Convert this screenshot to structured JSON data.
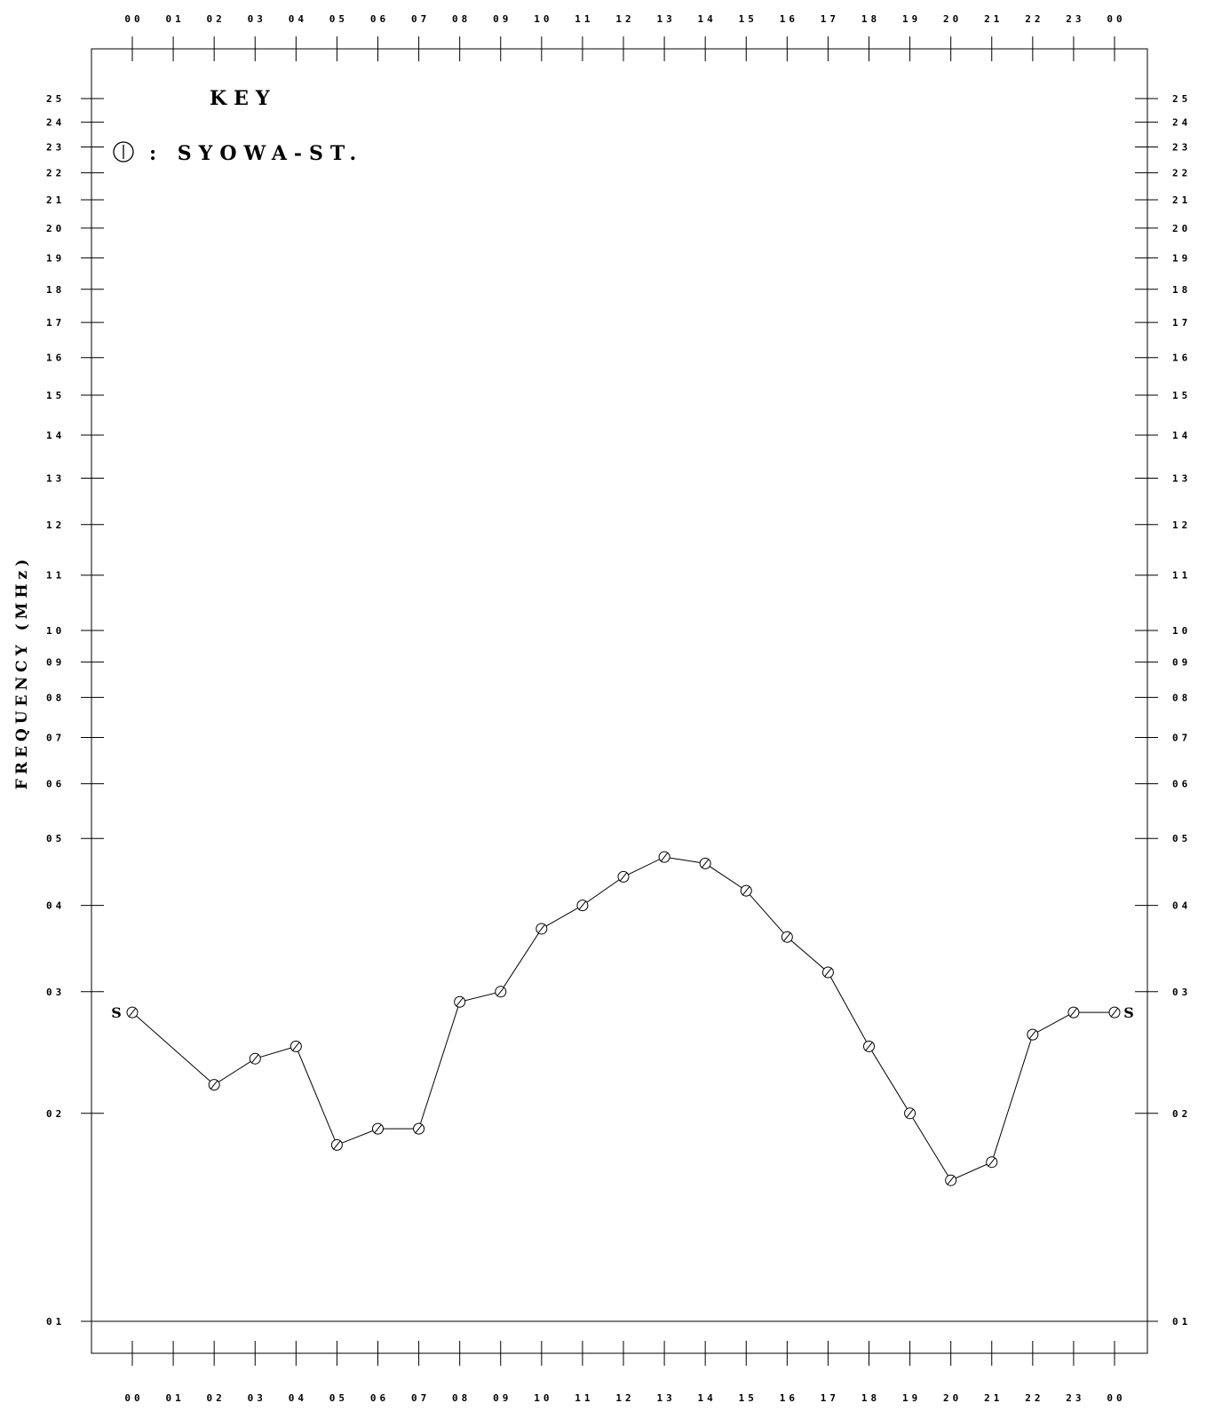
{
  "chart_data": {
    "type": "line",
    "ylabel": "FREQUENCY (MHz)",
    "x_ticks": [
      "00",
      "01",
      "02",
      "03",
      "04",
      "05",
      "06",
      "07",
      "08",
      "09",
      "10",
      "11",
      "12",
      "13",
      "14",
      "15",
      "16",
      "17",
      "18",
      "19",
      "20",
      "21",
      "22",
      "23",
      "00"
    ],
    "y_ticks": [
      {
        "label": "01",
        "value": 1
      },
      {
        "label": "02",
        "value": 2
      },
      {
        "label": "03",
        "value": 3
      },
      {
        "label": "04",
        "value": 4
      },
      {
        "label": "05",
        "value": 5
      },
      {
        "label": "06",
        "value": 6
      },
      {
        "label": "07",
        "value": 7
      },
      {
        "label": "08",
        "value": 8
      },
      {
        "label": "09",
        "value": 9
      },
      {
        "label": "10",
        "value": 10
      },
      {
        "label": "11",
        "value": 11
      },
      {
        "label": "12",
        "value": 12
      },
      {
        "label": "13",
        "value": 13
      },
      {
        "label": "14",
        "value": 14
      },
      {
        "label": "15",
        "value": 15
      },
      {
        "label": "16",
        "value": 16
      },
      {
        "label": "17",
        "value": 17
      },
      {
        "label": "18",
        "value": 18
      },
      {
        "label": "19",
        "value": 19
      },
      {
        "label": "20",
        "value": 20
      },
      {
        "label": "21",
        "value": 21
      },
      {
        "label": "22",
        "value": 22
      },
      {
        "label": "23",
        "value": 23
      },
      {
        "label": "24",
        "value": 24
      },
      {
        "label": "25",
        "value": 25
      }
    ],
    "y_scale": "log",
    "xlim": [
      0,
      24
    ],
    "key": {
      "title": "KEY",
      "entry": ": SYOWA-ST."
    },
    "series": [
      {
        "name": "SYOWA-ST.",
        "start_label": "S",
        "end_label": "S",
        "points": [
          {
            "x": 0,
            "y": 2.8
          },
          {
            "x": 2,
            "y": 2.2
          },
          {
            "x": 3,
            "y": 2.4
          },
          {
            "x": 4,
            "y": 2.5
          },
          {
            "x": 5,
            "y": 1.8
          },
          {
            "x": 6,
            "y": 1.9
          },
          {
            "x": 7,
            "y": 1.9
          },
          {
            "x": 8,
            "y": 2.9
          },
          {
            "x": 9,
            "y": 3.0
          },
          {
            "x": 10,
            "y": 3.7
          },
          {
            "x": 11,
            "y": 4.0
          },
          {
            "x": 12,
            "y": 4.4
          },
          {
            "x": 13,
            "y": 4.7
          },
          {
            "x": 14,
            "y": 4.6
          },
          {
            "x": 15,
            "y": 4.2
          },
          {
            "x": 16,
            "y": 3.6
          },
          {
            "x": 17,
            "y": 3.2
          },
          {
            "x": 18,
            "y": 2.5
          },
          {
            "x": 19,
            "y": 2.0
          },
          {
            "x": 20,
            "y": 1.6
          },
          {
            "x": 21,
            "y": 1.7
          },
          {
            "x": 22,
            "y": 2.6
          },
          {
            "x": 23,
            "y": 2.8
          },
          {
            "x": 24,
            "y": 2.8
          }
        ]
      }
    ]
  }
}
